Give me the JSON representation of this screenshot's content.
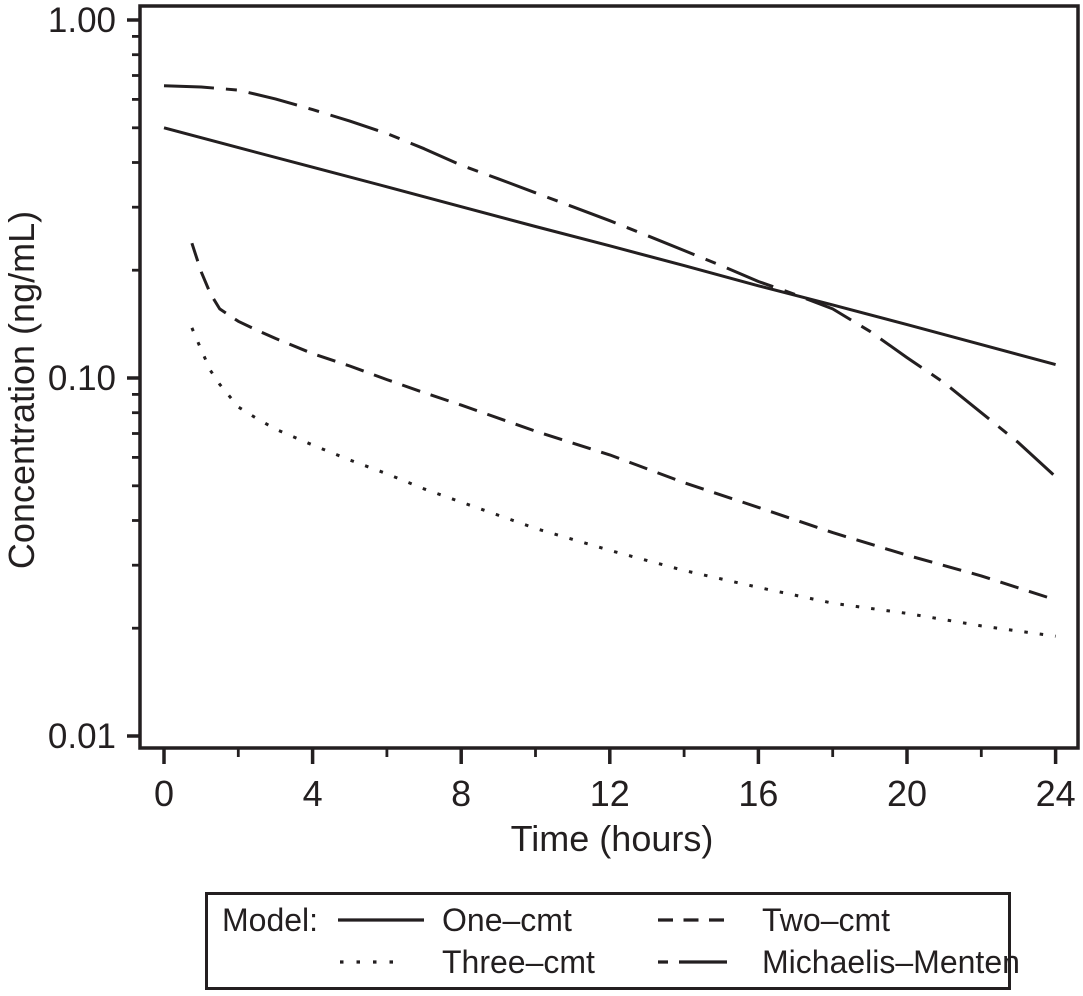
{
  "figure": {
    "background_color": "#ffffff",
    "ink_color": "#231f20"
  },
  "chart_data": {
    "type": "line",
    "title": "",
    "xlabel": "Time (hours)",
    "ylabel": "Concentration (ng/mL)",
    "x_axis": {
      "scale": "linear",
      "range": [
        -0.65,
        24.6
      ],
      "major_ticks": [
        0,
        4,
        8,
        12,
        16,
        20,
        24
      ],
      "major_tick_labels": [
        "0",
        "4",
        "8",
        "12",
        "16",
        "20",
        "24"
      ],
      "minor_ticks": [
        2,
        6,
        10,
        14,
        18,
        22
      ]
    },
    "y_axis": {
      "scale": "log",
      "range": [
        0.0093,
        1.09
      ],
      "major_ticks": [
        1.0,
        0.1,
        0.01
      ],
      "major_tick_labels": [
        "1.00",
        "0.10",
        "0.01"
      ],
      "minor_ticks": [
        0.9,
        0.8,
        0.7,
        0.6,
        0.5,
        0.4,
        0.3,
        0.2,
        0.09,
        0.08,
        0.07,
        0.06,
        0.05,
        0.04,
        0.03,
        0.02
      ]
    },
    "grid": false,
    "legend": {
      "title": "Model:",
      "position": "below-chart"
    },
    "series": [
      {
        "name": "One–cmt",
        "line_style": "solid",
        "points": [
          [
            0,
            0.5
          ],
          [
            2,
            0.44
          ],
          [
            4,
            0.388
          ],
          [
            6,
            0.342
          ],
          [
            8,
            0.301
          ],
          [
            10,
            0.265
          ],
          [
            12,
            0.234
          ],
          [
            14,
            0.206
          ],
          [
            16,
            0.181
          ],
          [
            18,
            0.16
          ],
          [
            20,
            0.141
          ],
          [
            22,
            0.124
          ],
          [
            24,
            0.109
          ]
        ]
      },
      {
        "name": "Two–cmt",
        "line_style": "dashed",
        "points": [
          [
            0.75,
            0.238
          ],
          [
            1,
            0.198
          ],
          [
            1.25,
            0.172
          ],
          [
            1.5,
            0.156
          ],
          [
            2,
            0.144
          ],
          [
            2.5,
            0.136
          ],
          [
            3,
            0.129
          ],
          [
            4,
            0.117
          ],
          [
            5,
            0.108
          ],
          [
            6,
            0.099
          ],
          [
            7,
            0.091
          ],
          [
            8,
            0.084
          ],
          [
            10,
            0.071
          ],
          [
            12,
            0.061
          ],
          [
            14,
            0.051
          ],
          [
            16,
            0.0435
          ],
          [
            18,
            0.037
          ],
          [
            20,
            0.032
          ],
          [
            22,
            0.028
          ],
          [
            24,
            0.024
          ]
        ]
      },
      {
        "name": "Three–cmt",
        "line_style": "dotted",
        "points": [
          [
            0.75,
            0.138
          ],
          [
            1,
            0.12
          ],
          [
            1.25,
            0.105
          ],
          [
            1.5,
            0.096
          ],
          [
            2,
            0.083
          ],
          [
            2.5,
            0.077
          ],
          [
            3,
            0.072
          ],
          [
            4,
            0.065
          ],
          [
            5,
            0.059
          ],
          [
            6,
            0.054
          ],
          [
            7,
            0.049
          ],
          [
            8,
            0.045
          ],
          [
            10,
            0.038
          ],
          [
            12,
            0.033
          ],
          [
            14,
            0.029
          ],
          [
            16,
            0.026
          ],
          [
            18,
            0.0235
          ],
          [
            20,
            0.022
          ],
          [
            22,
            0.0203
          ],
          [
            24,
            0.019
          ]
        ]
      },
      {
        "name": "Michaelis–Menten",
        "line_style": "dash-dot",
        "points": [
          [
            0,
            0.655
          ],
          [
            1,
            0.65
          ],
          [
            2,
            0.637
          ],
          [
            3,
            0.602
          ],
          [
            4,
            0.562
          ],
          [
            5,
            0.522
          ],
          [
            6,
            0.482
          ],
          [
            7,
            0.437
          ],
          [
            8,
            0.393
          ],
          [
            9,
            0.36
          ],
          [
            10,
            0.329
          ],
          [
            11,
            0.301
          ],
          [
            12,
            0.275
          ],
          [
            13,
            0.25
          ],
          [
            14,
            0.227
          ],
          [
            15,
            0.206
          ],
          [
            16,
            0.186
          ],
          [
            17,
            0.171
          ],
          [
            18,
            0.156
          ],
          [
            19,
            0.135
          ],
          [
            20,
            0.114
          ],
          [
            21,
            0.097
          ],
          [
            22,
            0.08
          ],
          [
            23,
            0.066
          ],
          [
            24,
            0.053
          ]
        ]
      }
    ]
  }
}
